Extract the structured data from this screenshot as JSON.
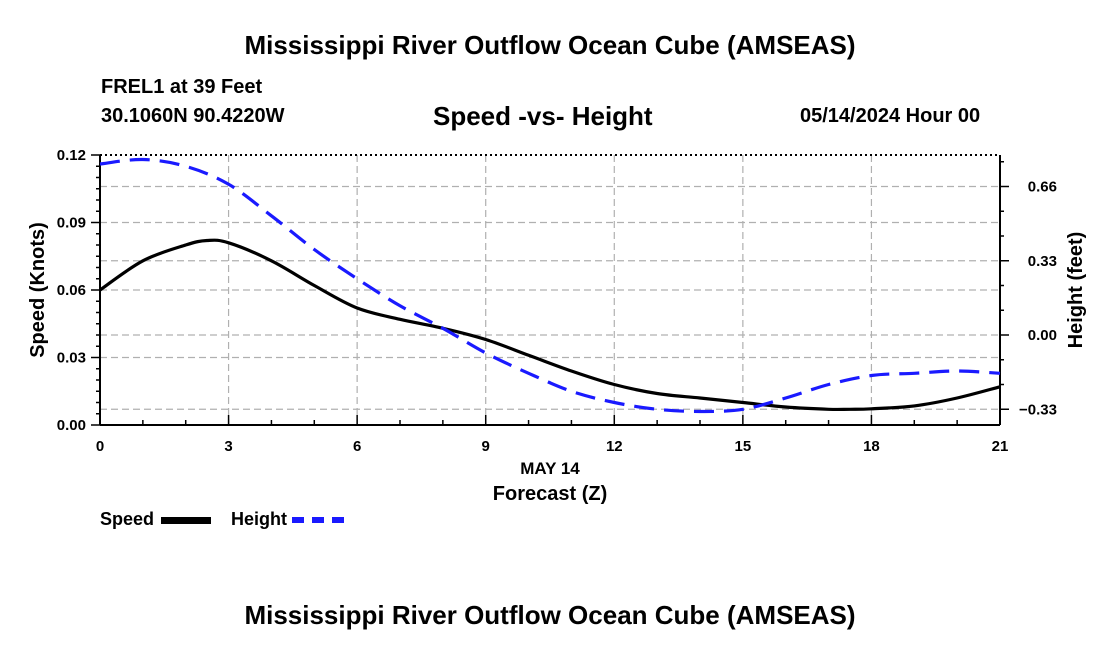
{
  "header": {
    "title": "Mississippi River Outflow Ocean Cube (AMSEAS)",
    "station": "FREL1 at 39 Feet",
    "coordinates": "30.1060N  90.4220W",
    "subtitle": "Speed -vs- Height",
    "datetime": "05/14/2024 Hour 00"
  },
  "footer": {
    "title": "Mississippi River Outflow Ocean Cube (AMSEAS)"
  },
  "colors": {
    "speed": "#000000",
    "height": "#1a1aff",
    "grid": "#b0b0b0"
  },
  "chart_data": {
    "type": "line",
    "title": "Speed -vs- Height",
    "xlabel": "Forecast (Z)",
    "xlabel_date": "MAY 14",
    "ylabel": "Speed (Knots)",
    "y2label": "Height (feet)",
    "xlim": [
      0,
      21
    ],
    "ylim": [
      0,
      0.12
    ],
    "y2lim": [
      -0.4,
      0.8
    ],
    "xticks": [
      0,
      3,
      6,
      9,
      12,
      15,
      18,
      21
    ],
    "xtick_labels": [
      "0",
      "3",
      "6",
      "9",
      "12",
      "15",
      "18",
      "21"
    ],
    "yticks": [
      0,
      0.03,
      0.06,
      0.09,
      0.12
    ],
    "ytick_labels": [
      "0.00",
      "0.03",
      "0.06",
      "0.09",
      "0.12"
    ],
    "y2ticks": [
      -0.33,
      0,
      0.33,
      0.66
    ],
    "y2tick_labels": [
      "−0.33",
      "0.00",
      "0.33",
      "0.66"
    ],
    "grid": true,
    "legend": [
      {
        "name": "Speed",
        "style": "solid"
      },
      {
        "name": "Height",
        "style": "dashed"
      }
    ],
    "series": [
      {
        "name": "Speed",
        "axis": "left",
        "x": [
          0,
          1,
          2,
          2.5,
          3,
          4,
          5,
          6,
          7,
          8,
          9,
          10,
          11,
          12,
          13,
          14,
          15,
          16,
          17,
          17.5,
          18,
          19,
          20,
          21
        ],
        "values": [
          0.06,
          0.073,
          0.08,
          0.082,
          0.081,
          0.073,
          0.062,
          0.052,
          0.047,
          0.043,
          0.038,
          0.031,
          0.024,
          0.018,
          0.014,
          0.012,
          0.01,
          0.008,
          0.007,
          0.007,
          0.0072,
          0.0085,
          0.012,
          0.017
        ]
      },
      {
        "name": "Height",
        "axis": "right",
        "x": [
          0,
          1,
          2,
          3,
          4,
          5,
          6,
          7,
          8,
          9,
          10,
          11,
          12,
          13,
          14,
          15,
          16,
          17,
          18,
          19,
          20,
          21
        ],
        "values": [
          0.76,
          0.78,
          0.75,
          0.67,
          0.53,
          0.38,
          0.25,
          0.13,
          0.03,
          -0.08,
          -0.17,
          -0.25,
          -0.3,
          -0.33,
          -0.34,
          -0.33,
          -0.28,
          -0.22,
          -0.18,
          -0.17,
          -0.16,
          -0.17
        ]
      }
    ]
  }
}
